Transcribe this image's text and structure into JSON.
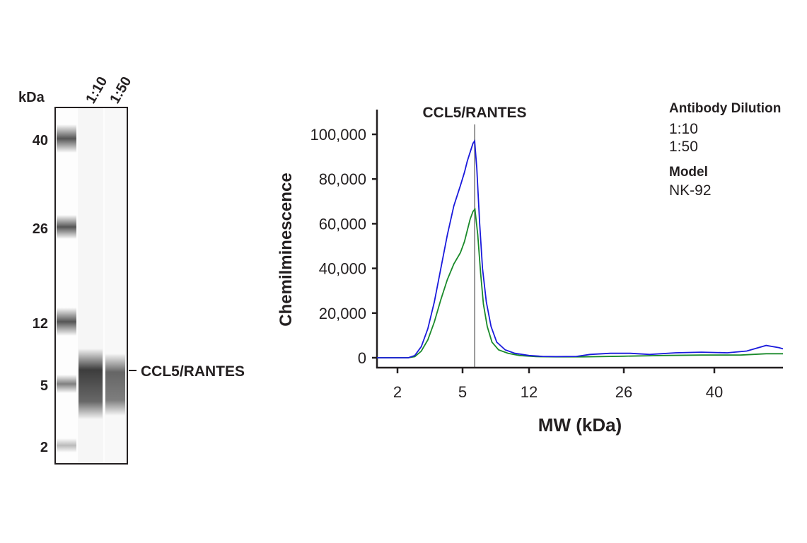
{
  "blot": {
    "unit_label": "kDa",
    "lanes": [
      "1:10",
      "1:50"
    ],
    "markers": [
      "40",
      "26",
      "12",
      "5",
      "2"
    ],
    "band_label": "CCL5/RANTES"
  },
  "chart_data": {
    "type": "line",
    "title": "CCL5/RANTES",
    "xlabel": "MW (kDa)",
    "ylabel": "Chemilminescence",
    "x_ticks": [
      2,
      5,
      12,
      26,
      40
    ],
    "x_tick_labels": [
      "2",
      "5",
      "12",
      "26",
      "40"
    ],
    "y_ticks": [
      0,
      20000,
      40000,
      60000,
      80000,
      100000
    ],
    "y_tick_labels": [
      "0",
      "20,000",
      "40,000",
      "60,000",
      "80,000",
      "100,000"
    ],
    "ylim": [
      0,
      100000
    ],
    "xlim": [
      1.05,
      50.6
    ],
    "x_scale": "nonlinear (tick positions as shown)",
    "marker_line_x": 6.27,
    "legend": {
      "title": "Antibody Dilution",
      "model_title": "Model",
      "model": "NK-92",
      "placement": "top-right"
    },
    "series": [
      {
        "name": "1:10",
        "color": "#1a1adc",
        "x": [
          1.05,
          2.5,
          2.8,
          3.1,
          3.4,
          3.7,
          4.0,
          4.3,
          4.6,
          4.9,
          5.2,
          5.5,
          5.8,
          6.1,
          6.27,
          6.5,
          6.8,
          7.1,
          7.5,
          8.0,
          8.6,
          9.5,
          10.5,
          12,
          14,
          16,
          19,
          21,
          24,
          27,
          30,
          34,
          38,
          42,
          45,
          48,
          50,
          50.6
        ],
        "y": [
          0,
          0,
          1000,
          5000,
          13000,
          25000,
          40000,
          55000,
          68000,
          77000,
          83000,
          88000,
          92000,
          96000,
          97000,
          85000,
          60000,
          40000,
          25000,
          14000,
          7000,
          3500,
          2000,
          1000,
          600,
          500,
          600,
          1500,
          2000,
          2000,
          1500,
          2200,
          2500,
          2200,
          3000,
          5500,
          4500,
          4000
        ]
      },
      {
        "name": "1:50",
        "color": "#1a8a2a",
        "x": [
          1.05,
          2.5,
          2.8,
          3.1,
          3.4,
          3.7,
          4.0,
          4.3,
          4.6,
          4.9,
          5.2,
          5.5,
          5.8,
          6.1,
          6.3,
          6.6,
          6.9,
          7.2,
          7.6,
          8.1,
          8.8,
          9.8,
          11,
          13,
          16,
          20,
          26,
          32,
          38,
          44,
          48,
          50.6
        ],
        "y": [
          0,
          0,
          500,
          3000,
          8000,
          16000,
          26000,
          35000,
          42000,
          47000,
          52000,
          57000,
          62000,
          65500,
          66500,
          55000,
          38000,
          24000,
          14000,
          7000,
          3500,
          2000,
          1000,
          500,
          400,
          400,
          700,
          1000,
          1200,
          1200,
          1800,
          1800
        ]
      }
    ]
  }
}
